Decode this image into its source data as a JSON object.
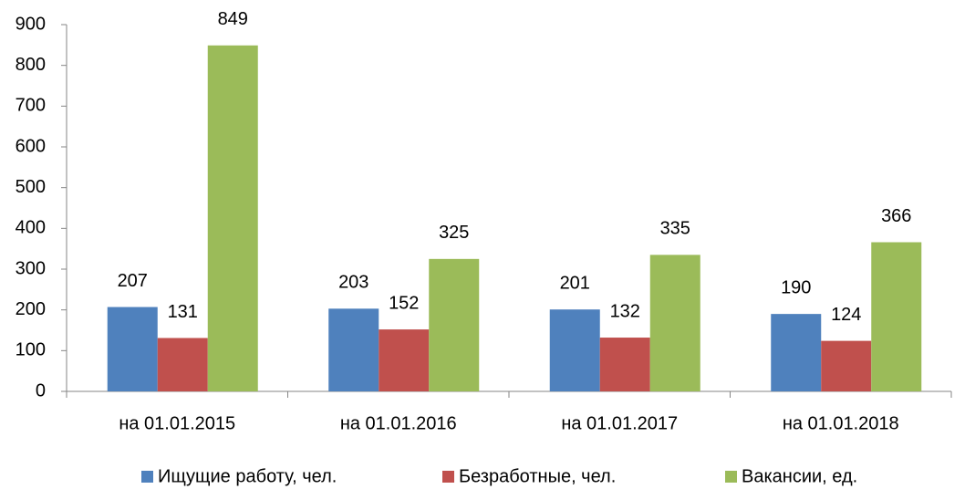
{
  "chart_data": {
    "type": "bar",
    "categories": [
      "на 01.01.2015",
      "на 01.01.2016",
      "на 01.01.2017",
      "на 01.01.2018"
    ],
    "series": [
      {
        "name": "Ищущие работу, чел.",
        "color": "#4f81bd",
        "values": [
          207,
          203,
          201,
          190
        ]
      },
      {
        "name": "Безработные, чел.",
        "color": "#c0504d",
        "values": [
          131,
          152,
          132,
          124
        ]
      },
      {
        "name": "Вакансии, ед.",
        "color": "#9bbb59",
        "values": [
          849,
          325,
          335,
          366
        ]
      }
    ],
    "ylim": [
      0,
      900
    ],
    "yticks": [
      0,
      100,
      200,
      300,
      400,
      500,
      600,
      700,
      800,
      900
    ],
    "grid": false,
    "legend": "bottom"
  }
}
